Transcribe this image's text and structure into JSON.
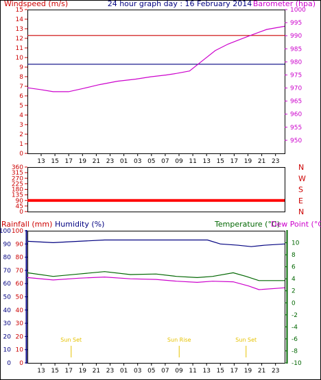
{
  "header": {
    "left_title": "Windspeed (m/s)",
    "center_title": "24 hour graph day : 16 February 2014",
    "right_title": "Barometer (hpa)",
    "left_color": "#cc0000",
    "center_color": "#000080",
    "right_color": "#cc00cc"
  },
  "x_ticks": [
    "13",
    "15",
    "17",
    "19",
    "21",
    "23",
    "01",
    "03",
    "05",
    "07",
    "09",
    "11",
    "13",
    "15",
    "17",
    "19",
    "21",
    "23"
  ],
  "chart_data": [
    {
      "type": "line",
      "name": "panel1",
      "yleft": {
        "label": "Windspeed (m/s)",
        "range": [
          0,
          15
        ],
        "ticks": [
          0,
          1,
          2,
          3,
          4,
          5,
          6,
          7,
          8,
          9,
          10,
          11,
          12,
          13,
          14,
          15
        ]
      },
      "yright": {
        "label": "Barometer (hpa)",
        "range": [
          945,
          1000
        ],
        "ticks": [
          950,
          955,
          960,
          965,
          970,
          975,
          980,
          985,
          990,
          995,
          1000
        ]
      },
      "series": [
        {
          "axis": "left",
          "color": "#cc0000",
          "values": [
            [
              0,
              12.3
            ],
            [
              1,
              12.3
            ]
          ]
        },
        {
          "axis": "left",
          "color": "#000080",
          "values": [
            [
              0,
              9.3
            ],
            [
              1,
              9.3
            ]
          ]
        },
        {
          "axis": "right",
          "color": "#cc00cc",
          "values": [
            [
              0.0,
              970.1
            ],
            [
              0.05,
              969.4
            ],
            [
              0.1,
              968.6
            ],
            [
              0.16,
              968.6
            ],
            [
              0.22,
              969.9
            ],
            [
              0.28,
              971.3
            ],
            [
              0.35,
              972.6
            ],
            [
              0.42,
              973.4
            ],
            [
              0.48,
              974.3
            ],
            [
              0.54,
              975.0
            ],
            [
              0.58,
              975.6
            ],
            [
              0.63,
              976.5
            ],
            [
              0.68,
              980.4
            ],
            [
              0.73,
              984.3
            ],
            [
              0.78,
              986.8
            ],
            [
              0.83,
              988.7
            ],
            [
              0.88,
              990.6
            ],
            [
              0.93,
              992.4
            ],
            [
              1.0,
              993.6
            ]
          ]
        }
      ]
    },
    {
      "type": "line",
      "name": "panel2",
      "yleft": {
        "range": [
          0,
          360
        ],
        "ticks": [
          0,
          45,
          90,
          135,
          180,
          225,
          270,
          315,
          360
        ]
      },
      "yright": {
        "ticks": [
          "N",
          "W",
          "S",
          "E",
          "N"
        ]
      },
      "series": [
        {
          "axis": "left",
          "color": "#ff0000",
          "values": [
            [
              0,
              90
            ],
            [
              1,
              90
            ]
          ]
        }
      ]
    },
    {
      "type": "line",
      "name": "panel3",
      "legend": {
        "rainfall": "Rainfall (mm)",
        "humidity": "Humidity (%)",
        "temperature": "Temperature (°C)",
        "dewpoint": "Dew Point (°C)"
      },
      "yleft": {
        "range": [
          0,
          100
        ],
        "ticks": [
          0,
          10,
          20,
          30,
          40,
          50,
          60,
          70,
          80,
          90,
          100
        ]
      },
      "yright": {
        "range": [
          -10,
          12
        ],
        "ticks": [
          -10,
          -8,
          -6,
          -4,
          -2,
          0,
          2,
          4,
          6,
          8,
          10
        ]
      },
      "series": [
        {
          "axis": "left",
          "color": "#000080",
          "name": "Humidity (%)",
          "values": [
            [
              0,
              92
            ],
            [
              0.1,
              91
            ],
            [
              0.2,
              92
            ],
            [
              0.3,
              93
            ],
            [
              0.4,
              93
            ],
            [
              0.5,
              93
            ],
            [
              0.6,
              93
            ],
            [
              0.7,
              93
            ],
            [
              0.75,
              90
            ],
            [
              0.82,
              89
            ],
            [
              0.87,
              88
            ],
            [
              0.92,
              89
            ],
            [
              1.0,
              90
            ]
          ]
        },
        {
          "axis": "right",
          "color": "#006600",
          "name": "Temperature (°C)",
          "values": [
            [
              0,
              5.0
            ],
            [
              0.1,
              4.4
            ],
            [
              0.2,
              4.8
            ],
            [
              0.3,
              5.2
            ],
            [
              0.4,
              4.7
            ],
            [
              0.5,
              4.8
            ],
            [
              0.58,
              4.4
            ],
            [
              0.66,
              4.2
            ],
            [
              0.72,
              4.4
            ],
            [
              0.8,
              5.0
            ],
            [
              0.85,
              4.4
            ],
            [
              0.9,
              3.7
            ],
            [
              1.0,
              3.7
            ]
          ]
        },
        {
          "axis": "right",
          "color": "#cc00cc",
          "name": "Dew Point (°C)",
          "values": [
            [
              0,
              4.2
            ],
            [
              0.1,
              3.8
            ],
            [
              0.2,
              4.1
            ],
            [
              0.3,
              4.3
            ],
            [
              0.4,
              4.0
            ],
            [
              0.5,
              3.9
            ],
            [
              0.58,
              3.6
            ],
            [
              0.66,
              3.4
            ],
            [
              0.72,
              3.6
            ],
            [
              0.8,
              3.5
            ],
            [
              0.86,
              2.8
            ],
            [
              0.9,
              2.2
            ],
            [
              1.0,
              2.5
            ]
          ]
        }
      ],
      "annotations": [
        {
          "label": "Sun Set",
          "x": 0.17
        },
        {
          "label": "Sun Rise",
          "x": 0.59
        },
        {
          "label": "Sun Set",
          "x": 0.85
        }
      ]
    }
  ]
}
